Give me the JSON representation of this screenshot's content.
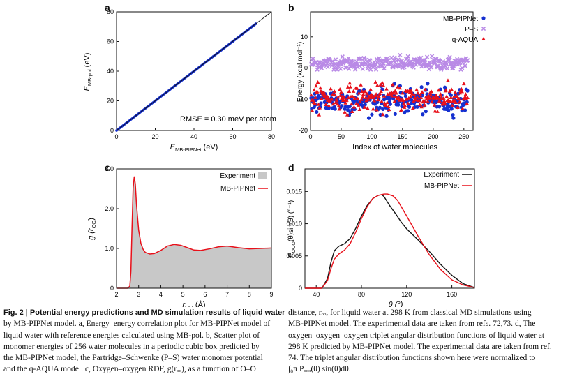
{
  "panels": {
    "a": {
      "label": "a",
      "xlabel_main": "E",
      "xlabel_sub": "MB-PIPNet",
      "xlabel_unit": " (eV)",
      "ylabel_main": "E",
      "ylabel_sub": "MB-pol",
      "ylabel_unit": " (eV)",
      "annotation": "RMSE = 0.30 meV per atom"
    },
    "b": {
      "label": "b",
      "xlabel": "Index of water molecules",
      "ylabel": "Energy (kcal mol⁻¹)"
    },
    "c": {
      "label": "c",
      "xlabel_main": "r",
      "xlabel_sub": "OO",
      "xlabel_unit": " (Å)",
      "ylabel_main": "g (r",
      "ylabel_sub": "OO",
      "ylabel_end": ")"
    },
    "d": {
      "label": "d",
      "xlabel": "θ (°)",
      "ylabel_main": "P",
      "ylabel_sub": "OOO",
      "ylabel_rest": "(θ)sin(θ) (°⁻¹)"
    }
  },
  "colors": {
    "blue": "#1530d0",
    "purple": "#b98ae6",
    "red": "#e8101a",
    "gray": "#c8c8c8",
    "black": "#111111"
  },
  "chart_data": [
    {
      "panel": "a",
      "type": "scatter",
      "x": [
        0,
        10,
        20,
        30,
        40,
        50,
        60,
        70,
        72
      ],
      "y": [
        0,
        10,
        20,
        30,
        40,
        50,
        60,
        70,
        72
      ],
      "xlim": [
        0,
        80
      ],
      "ylim": [
        0,
        80
      ],
      "xticks": [
        "0",
        "20",
        "40",
        "60",
        "80"
      ],
      "yticks": [
        "0",
        "20",
        "40",
        "60",
        "80"
      ],
      "reference_line": "y = x",
      "grid": false
    },
    {
      "panel": "b",
      "type": "scatter",
      "xlim": [
        0,
        265
      ],
      "ylim": [
        -20,
        18
      ],
      "xticks": [
        "0",
        "50",
        "100",
        "150",
        "200",
        "250"
      ],
      "yticks": [
        "-20",
        "-10",
        "0",
        "10"
      ],
      "series": [
        {
          "name": "MB-PIPNet",
          "marker": "circle",
          "color": "#1530d0",
          "count": 256,
          "y_mean": -10.5,
          "y_range": [
            -16,
            -5
          ]
        },
        {
          "name": "P–S",
          "marker": "x",
          "color": "#b98ae6",
          "count": 256,
          "y_mean": 1.5,
          "y_range": [
            -0.5,
            5
          ]
        },
        {
          "name": "q-AQUA",
          "marker": "triangle",
          "color": "#e8101a",
          "count": 256,
          "y_mean": -9.5,
          "y_range": [
            -15,
            -4
          ]
        }
      ],
      "legend": "top-right"
    },
    {
      "panel": "c",
      "type": "line",
      "xlim": [
        2,
        9
      ],
      "ylim": [
        0,
        3.0
      ],
      "xticks": [
        "2",
        "3",
        "4",
        "5",
        "6",
        "7",
        "8",
        "9"
      ],
      "yticks": [
        "0",
        "1.0",
        "2.0",
        "3.0"
      ],
      "series": [
        {
          "name": "Experiment",
          "style": "filled area",
          "color": "#c8c8c8",
          "x": [
            2.0,
            2.5,
            2.6,
            2.65,
            2.7,
            2.75,
            2.8,
            2.85,
            2.9,
            3.0,
            3.1,
            3.2,
            3.3,
            3.5,
            3.7,
            4.0,
            4.3,
            4.6,
            4.9,
            5.2,
            5.5,
            5.8,
            6.2,
            6.6,
            7.0,
            7.5,
            8.0,
            8.5,
            9.0
          ],
          "y": [
            0,
            0,
            0.05,
            0.4,
            1.5,
            2.5,
            2.78,
            2.6,
            2.1,
            1.45,
            1.12,
            0.97,
            0.9,
            0.85,
            0.86,
            0.95,
            1.06,
            1.1,
            1.08,
            1.02,
            0.96,
            0.95,
            0.99,
            1.04,
            1.05,
            1.02,
            0.99,
            1.0,
            1.01
          ]
        },
        {
          "name": "MB-PIPNet",
          "style": "line",
          "color": "#e8101a",
          "x": [
            2.0,
            2.5,
            2.6,
            2.65,
            2.7,
            2.75,
            2.8,
            2.85,
            2.9,
            3.0,
            3.1,
            3.2,
            3.3,
            3.5,
            3.7,
            4.0,
            4.3,
            4.6,
            4.9,
            5.2,
            5.5,
            5.8,
            6.2,
            6.6,
            7.0,
            7.5,
            8.0,
            8.5,
            9.0
          ],
          "y": [
            0,
            0,
            0.05,
            0.42,
            1.52,
            2.52,
            2.8,
            2.62,
            2.12,
            1.46,
            1.13,
            0.98,
            0.9,
            0.86,
            0.87,
            0.95,
            1.06,
            1.1,
            1.08,
            1.02,
            0.96,
            0.95,
            0.99,
            1.04,
            1.06,
            1.02,
            0.99,
            1.0,
            1.01
          ]
        }
      ],
      "legend": "top-right"
    },
    {
      "panel": "d",
      "type": "line",
      "xlim": [
        30,
        180
      ],
      "ylim": [
        0,
        0.0185
      ],
      "xticks": [
        "40",
        "80",
        "120",
        "160"
      ],
      "yticks": [
        "0",
        "0.005",
        "0.010",
        "0.015"
      ],
      "series": [
        {
          "name": "Experiment",
          "color": "#111111",
          "x": [
            30,
            45,
            50,
            53,
            56,
            60,
            65,
            70,
            75,
            80,
            85,
            90,
            95,
            98,
            100,
            105,
            110,
            115,
            120,
            130,
            140,
            150,
            160,
            170,
            180
          ],
          "y": [
            0,
            0,
            0.0015,
            0.004,
            0.0058,
            0.0065,
            0.0069,
            0.0077,
            0.0093,
            0.0112,
            0.0128,
            0.0139,
            0.0144,
            0.0145,
            0.0142,
            0.0128,
            0.0116,
            0.0103,
            0.0092,
            0.0075,
            0.0057,
            0.0037,
            0.002,
            0.0007,
            0.0001
          ]
        },
        {
          "name": "MB-PIPNet",
          "color": "#e8101a",
          "x": [
            30,
            45,
            50,
            53,
            56,
            60,
            65,
            70,
            75,
            80,
            85,
            90,
            95,
            100,
            103,
            108,
            112,
            116,
            120,
            130,
            140,
            150,
            160,
            170,
            180
          ],
          "y": [
            0,
            0,
            0.0012,
            0.003,
            0.0045,
            0.0053,
            0.0059,
            0.0069,
            0.0087,
            0.0108,
            0.0126,
            0.0139,
            0.0144,
            0.0146,
            0.0146,
            0.0143,
            0.0136,
            0.0124,
            0.0112,
            0.0081,
            0.0052,
            0.0029,
            0.0013,
            0.0005,
            0.0001
          ]
        }
      ],
      "legend": "top-right"
    }
  ],
  "caption": {
    "left": {
      "bold_prefix": "Fig. 2 | Potential energy predictions and MD simulation results of liquid water by MB-PIPNet model.",
      "lines": [
        "Fig. 2 | Potential energy predictions and MD simulation results of liquid water",
        "by MB-PIPNet model. a, Energy–energy correlation plot for MB-PIPNet model of",
        "liquid water with reference energies calculated using MB-pol. b, Scatter plot of",
        "monomer energies of 256 water molecules in a periodic cubic box predicted by",
        "the MB-PIPNet model, the Partridge–Schwenke (P–S) water monomer potential",
        "and the q-AQUA model. c, Oxygen–oxygen RDF, g(rₒₒ), as a function of O–O"
      ]
    },
    "right": {
      "lines": [
        "distance, rₒₒ, for liquid water at 298 K from classical MD simulations using",
        "MB-PIPNet model. The experimental data are taken from refs. 72,73. d, The",
        "oxygen–oxygen–oxygen triplet angular distribution functions of liquid water at",
        "298 K predicted by MB-PIPNet model. The experimental data are taken from ref.",
        "74. The triplet angular distribution functions shown here were normalized to",
        "∫₀π Pₒₒₒ(θ) sin(θ)dθ."
      ]
    }
  }
}
